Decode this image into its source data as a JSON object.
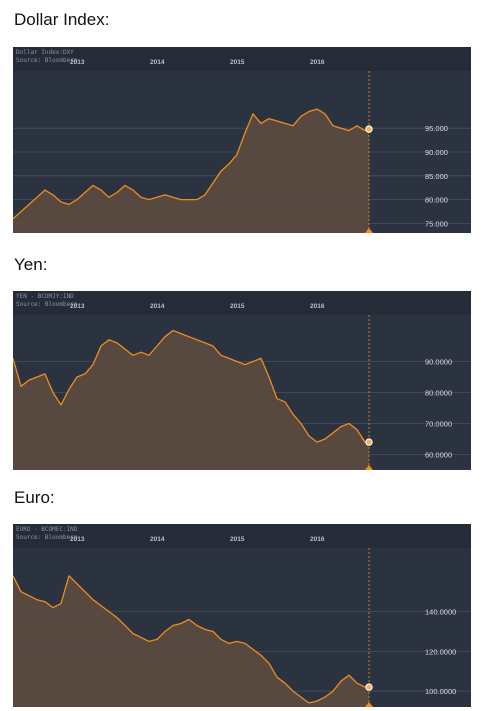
{
  "sections": [
    {
      "title": "Dollar Index:",
      "header_line1": "Dollar Index:DXY",
      "header_line2": "Source: Bloomberg"
    },
    {
      "title": "Yen:",
      "header_line1": "YEN - BCOMJY:IND",
      "header_line2": "Source: Bloomberg"
    },
    {
      "title": "Euro:",
      "header_line1": "EURO - BCOMEC:IND",
      "header_line2": "Source: Bloomberg"
    }
  ],
  "colors": {
    "background": "#2b3340",
    "header": "#252c37",
    "line": "#f08c1e",
    "fill": "#5a4a40",
    "grid": "#4a5260",
    "marker": "#f08c1e"
  },
  "chart_data": [
    {
      "type": "area",
      "xlabel": "",
      "ylabel": "",
      "x_ticks": [
        "2013",
        "2014",
        "2015",
        "2016"
      ],
      "x_tick_values": [
        2013,
        2014,
        2015,
        2016
      ],
      "xlim": [
        2012.2,
        2017.2
      ],
      "y_ticks": [
        "95.000",
        "90.000",
        "85.000",
        "80.000",
        "75.000"
      ],
      "y_tick_values": [
        95,
        90,
        85,
        80,
        75
      ],
      "ylim": [
        73,
        107
      ],
      "grid": true,
      "cursor_x": 2016.65,
      "x": [
        2012.2,
        2012.3,
        2012.4,
        2012.5,
        2012.6,
        2012.7,
        2012.8,
        2012.9,
        2013.0,
        2013.1,
        2013.2,
        2013.3,
        2013.4,
        2013.5,
        2013.6,
        2013.7,
        2013.8,
        2013.9,
        2014.0,
        2014.1,
        2014.2,
        2014.3,
        2014.4,
        2014.5,
        2014.6,
        2014.7,
        2014.8,
        2014.9,
        2015.0,
        2015.1,
        2015.2,
        2015.3,
        2015.4,
        2015.5,
        2015.6,
        2015.7,
        2015.8,
        2015.9,
        2016.0,
        2016.1,
        2016.2,
        2016.3,
        2016.4,
        2016.5,
        2016.6,
        2016.65
      ],
      "values": [
        76,
        77.5,
        79,
        80.5,
        82,
        81,
        79.5,
        79,
        80,
        81.5,
        83,
        82,
        80.5,
        81.5,
        83,
        82,
        80.5,
        80,
        80.5,
        81,
        80.5,
        80,
        80,
        80,
        81,
        83.5,
        86,
        87.5,
        89.5,
        94,
        98,
        96,
        97,
        96.5,
        96,
        95.5,
        97.5,
        98.5,
        99,
        98,
        95.5,
        95,
        94.5,
        95.5,
        94.5,
        94.8
      ]
    },
    {
      "type": "area",
      "xlabel": "",
      "ylabel": "",
      "x_ticks": [
        "2013",
        "2014",
        "2015",
        "2016"
      ],
      "x_tick_values": [
        2013,
        2014,
        2015,
        2016
      ],
      "xlim": [
        2012.2,
        2017.2
      ],
      "y_ticks": [
        "90.0000",
        "80.0000",
        "70.0000",
        "60.0000"
      ],
      "y_tick_values": [
        90,
        80,
        70,
        60
      ],
      "ylim": [
        55,
        105
      ],
      "grid": true,
      "cursor_x": 2016.65,
      "x": [
        2012.2,
        2012.3,
        2012.4,
        2012.5,
        2012.6,
        2012.7,
        2012.8,
        2012.9,
        2013.0,
        2013.1,
        2013.2,
        2013.3,
        2013.4,
        2013.5,
        2013.6,
        2013.7,
        2013.8,
        2013.9,
        2014.0,
        2014.1,
        2014.2,
        2014.3,
        2014.4,
        2014.5,
        2014.6,
        2014.7,
        2014.8,
        2014.9,
        2015.0,
        2015.1,
        2015.2,
        2015.3,
        2015.4,
        2015.5,
        2015.6,
        2015.7,
        2015.8,
        2015.9,
        2016.0,
        2016.1,
        2016.2,
        2016.3,
        2016.4,
        2016.5,
        2016.6,
        2016.65
      ],
      "values": [
        91,
        82,
        84,
        85,
        86,
        80,
        76,
        81,
        85,
        86,
        89,
        95,
        97,
        96,
        94,
        92,
        93,
        92,
        95,
        98,
        100,
        99,
        98,
        97,
        96,
        95,
        92,
        91,
        90,
        89,
        90,
        91,
        85,
        78,
        77,
        73,
        70,
        66,
        64,
        65,
        67,
        69,
        70,
        68,
        64,
        64
      ]
    },
    {
      "type": "area",
      "xlabel": "",
      "ylabel": "",
      "x_ticks": [
        "2013",
        "2014",
        "2015",
        "2016"
      ],
      "x_tick_values": [
        2013,
        2014,
        2015,
        2016
      ],
      "xlim": [
        2012.2,
        2017.2
      ],
      "y_ticks": [
        "140.0000",
        "120.0000",
        "100.0000"
      ],
      "y_tick_values": [
        140,
        120,
        100
      ],
      "ylim": [
        92,
        172
      ],
      "grid": true,
      "cursor_x": 2016.65,
      "x": [
        2012.2,
        2012.3,
        2012.4,
        2012.5,
        2012.6,
        2012.7,
        2012.8,
        2012.9,
        2013.0,
        2013.1,
        2013.2,
        2013.3,
        2013.4,
        2013.5,
        2013.6,
        2013.7,
        2013.8,
        2013.9,
        2014.0,
        2014.1,
        2014.2,
        2014.3,
        2014.4,
        2014.5,
        2014.6,
        2014.7,
        2014.8,
        2014.9,
        2015.0,
        2015.1,
        2015.2,
        2015.3,
        2015.4,
        2015.5,
        2015.6,
        2015.7,
        2015.8,
        2015.9,
        2016.0,
        2016.1,
        2016.2,
        2016.3,
        2016.4,
        2016.5,
        2016.6,
        2016.65
      ],
      "values": [
        158,
        150,
        148,
        146,
        145,
        142,
        144,
        158,
        154,
        150,
        146,
        143,
        140,
        137,
        133,
        129,
        127,
        125,
        126,
        130,
        133,
        134,
        136,
        133,
        131,
        130,
        126,
        124,
        125,
        124,
        121,
        118,
        114,
        107,
        104,
        100,
        97,
        94,
        95,
        97,
        100,
        105,
        108,
        104,
        102,
        102
      ]
    }
  ]
}
